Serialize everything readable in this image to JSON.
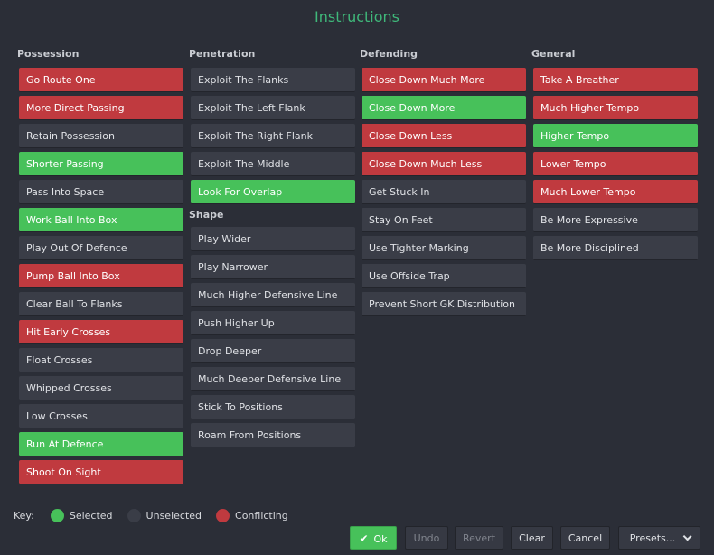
{
  "title": "Instructions",
  "columns": {
    "possession": {
      "header": "Possession",
      "items": [
        {
          "label": "Go Route One",
          "state": "con"
        },
        {
          "label": "More Direct Passing",
          "state": "con"
        },
        {
          "label": "Retain Possession",
          "state": "uns"
        },
        {
          "label": "Shorter Passing",
          "state": "sel"
        },
        {
          "label": "Pass Into Space",
          "state": "uns"
        },
        {
          "label": "Work Ball Into Box",
          "state": "sel"
        },
        {
          "label": "Play Out Of Defence",
          "state": "uns"
        },
        {
          "label": "Pump Ball Into Box",
          "state": "con"
        },
        {
          "label": "Clear Ball To Flanks",
          "state": "uns"
        },
        {
          "label": "Hit Early Crosses",
          "state": "con"
        },
        {
          "label": "Float Crosses",
          "state": "uns"
        },
        {
          "label": "Whipped Crosses",
          "state": "uns"
        },
        {
          "label": "Low Crosses",
          "state": "uns"
        },
        {
          "label": "Run At Defence",
          "state": "sel"
        },
        {
          "label": "Shoot On Sight",
          "state": "con"
        }
      ]
    },
    "penetration": {
      "header": "Penetration",
      "items": [
        {
          "label": "Exploit The Flanks",
          "state": "uns"
        },
        {
          "label": "Exploit The Left Flank",
          "state": "uns"
        },
        {
          "label": "Exploit The Right Flank",
          "state": "uns"
        },
        {
          "label": "Exploit The Middle",
          "state": "uns"
        },
        {
          "label": "Look For Overlap",
          "state": "sel"
        }
      ]
    },
    "shape": {
      "header": "Shape",
      "items": [
        {
          "label": "Play Wider",
          "state": "uns"
        },
        {
          "label": "Play Narrower",
          "state": "uns"
        },
        {
          "label": "Much Higher Defensive Line",
          "state": "uns"
        },
        {
          "label": "Push Higher Up",
          "state": "uns"
        },
        {
          "label": "Drop Deeper",
          "state": "uns"
        },
        {
          "label": "Much Deeper Defensive Line",
          "state": "uns"
        },
        {
          "label": "Stick To Positions",
          "state": "uns"
        },
        {
          "label": "Roam From Positions",
          "state": "uns"
        }
      ]
    },
    "defending": {
      "header": "Defending",
      "items": [
        {
          "label": "Close Down Much More",
          "state": "con"
        },
        {
          "label": "Close Down More",
          "state": "sel"
        },
        {
          "label": "Close Down Less",
          "state": "con"
        },
        {
          "label": "Close Down Much Less",
          "state": "con"
        },
        {
          "label": "Get Stuck In",
          "state": "uns"
        },
        {
          "label": "Stay On Feet",
          "state": "uns"
        },
        {
          "label": "Use Tighter Marking",
          "state": "uns"
        },
        {
          "label": "Use Offside Trap",
          "state": "uns"
        },
        {
          "label": "Prevent Short GK Distribution",
          "state": "uns"
        }
      ]
    },
    "general": {
      "header": "General",
      "items": [
        {
          "label": "Take A Breather",
          "state": "con"
        },
        {
          "label": "Much Higher Tempo",
          "state": "con"
        },
        {
          "label": "Higher Tempo",
          "state": "sel"
        },
        {
          "label": "Lower Tempo",
          "state": "con"
        },
        {
          "label": "Much Lower Tempo",
          "state": "con"
        },
        {
          "label": "Be More Expressive",
          "state": "uns"
        },
        {
          "label": "Be More Disciplined",
          "state": "uns"
        }
      ]
    }
  },
  "key": {
    "label": "Key:",
    "selected": "Selected",
    "unselected": "Unselected",
    "conflicting": "Conflicting"
  },
  "actions": {
    "ok": "Ok",
    "undo": "Undo",
    "revert": "Revert",
    "clear": "Clear",
    "cancel": "Cancel",
    "presets": "Presets..."
  },
  "colors": {
    "background": "#2b2e37",
    "selected": "#47c15a",
    "unselected": "#3a3d47",
    "conflicting": "#c03a3f",
    "title": "#3fb87a"
  }
}
